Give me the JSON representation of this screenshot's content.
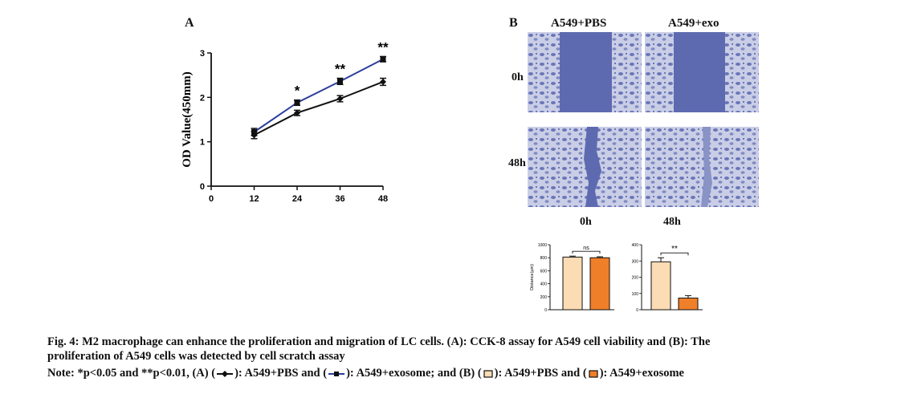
{
  "panel_a": {
    "letter": "A"
  },
  "panel_b": {
    "letter": "B",
    "columns": [
      "A549+PBS",
      "A549+exo"
    ],
    "rows": [
      "0h",
      "48h"
    ]
  },
  "chart_data": [
    {
      "type": "line",
      "title": "",
      "xlabel": "",
      "ylabel": "OD Value(450mm)",
      "xlim": [
        0,
        48
      ],
      "ylim": [
        0,
        3
      ],
      "xticks": [
        "0",
        "12",
        "24",
        "36",
        "48"
      ],
      "yticks": [
        "0",
        "1",
        "2",
        "3"
      ],
      "x": [
        12,
        24,
        36,
        48
      ],
      "series": [
        {
          "values": [
            1.15,
            1.65,
            1.97,
            2.35
          ],
          "errors": [
            0.08,
            0.06,
            0.07,
            0.08
          ],
          "color": "#111111",
          "marker": "diamond"
        },
        {
          "values": [
            1.22,
            1.88,
            2.36,
            2.86
          ],
          "errors": [
            0.08,
            0.06,
            0.07,
            0.06
          ],
          "color": "#2b3e9c",
          "marker": "square"
        }
      ],
      "annotations": [
        {
          "x": 24,
          "text": "*"
        },
        {
          "x": 36,
          "text": "**"
        },
        {
          "x": 48,
          "text": "**"
        }
      ],
      "grid": false
    },
    {
      "type": "bar",
      "title": "0h",
      "ylabel": "Distance(μm)",
      "ylim": [
        0,
        1000
      ],
      "yticks": [
        "0",
        "200",
        "400",
        "600",
        "800",
        "1000"
      ],
      "categories": [
        "A549+PBS",
        "A549+exosome"
      ],
      "values": [
        810,
        800
      ],
      "errors": [
        15,
        15
      ],
      "colors": [
        "#fcdcb4",
        "#f07f2a"
      ],
      "significance": "ns"
    },
    {
      "type": "bar",
      "title": "48h",
      "ylabel": "",
      "ylim": [
        0,
        400
      ],
      "yticks": [
        "0",
        "100",
        "200",
        "300",
        "400"
      ],
      "categories": [
        "A549+PBS",
        "A549+exosome"
      ],
      "values": [
        295,
        72
      ],
      "errors": [
        25,
        15
      ],
      "colors": [
        "#fcdcb4",
        "#f07f2a"
      ],
      "significance": "**"
    }
  ],
  "caption": {
    "line1": "Fig. 4: M2 macrophage can enhance the proliferation and migration of LC cells. (A): CCK-8 assay for A549 cell viability and (B): The",
    "line2": "proliferation of A549 cells was detected by cell scratch assay",
    "note": {
      "p1": "Note: *p<0.05 and **p<0.01, (A) (",
      "p2": "): A549+PBS and (",
      "p3": "): A549+exosome; and (B) (",
      "p4": "): A549+PBS and (",
      "p5": "): A549+exosome"
    }
  }
}
